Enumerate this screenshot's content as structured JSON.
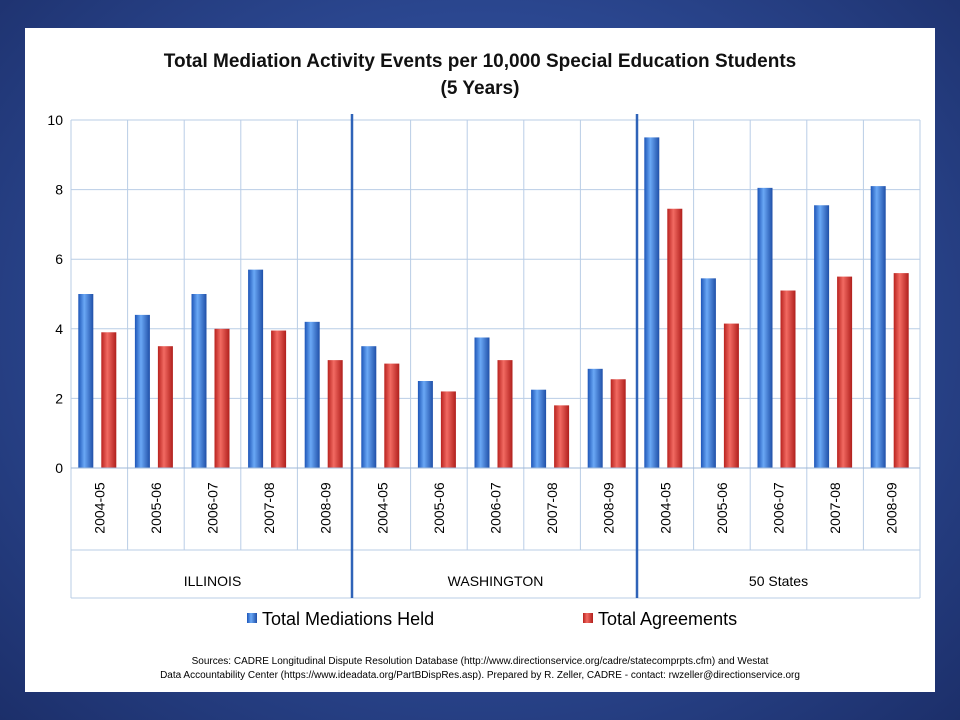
{
  "chart_data": {
    "type": "bar",
    "title": "Total Mediation Activity Events per 10,000 Special Education Students",
    "subtitle": "(5 Years)",
    "ylim": [
      0,
      10
    ],
    "yticks": [
      "0",
      "2",
      "4",
      "6",
      "8",
      "10"
    ],
    "groups": [
      {
        "name": "ILLINOIS",
        "categories": [
          "2004-05",
          "2005-06",
          "2006-07",
          "2007-08",
          "2008-09"
        ]
      },
      {
        "name": "WASHINGTON",
        "categories": [
          "2004-05",
          "2005-06",
          "2006-07",
          "2007-08",
          "2008-09"
        ]
      },
      {
        "name": "50 States",
        "categories": [
          "2004-05",
          "2005-06",
          "2006-07",
          "2007-08",
          "2008-09"
        ]
      }
    ],
    "series": [
      {
        "name": "Total Mediations Held",
        "color": "#3b82e0",
        "values": [
          5.0,
          4.4,
          5.0,
          5.7,
          4.2,
          3.5,
          2.5,
          3.75,
          2.25,
          2.85,
          9.5,
          5.45,
          8.05,
          7.55,
          8.1
        ]
      },
      {
        "name": "Total Agreements",
        "color": "#e8443f",
        "values": [
          3.9,
          3.5,
          4.0,
          3.95,
          3.1,
          3.0,
          2.2,
          3.1,
          1.8,
          2.55,
          7.45,
          4.15,
          5.1,
          5.5,
          5.6
        ]
      }
    ],
    "grid": true,
    "legend": "bottom"
  },
  "sources": {
    "line1": "Sources: CADRE Longitudinal Dispute Resolution Database  (http://www.directionservice.org/cadre/statecomprpts.cfm) and  Westat",
    "line2": "Data Accountability Center (https://www.ideadata.org/PartBDispRes.asp). Prepared by R. Zeller, CADRE - contact: rwzeller@directionservice.org"
  }
}
